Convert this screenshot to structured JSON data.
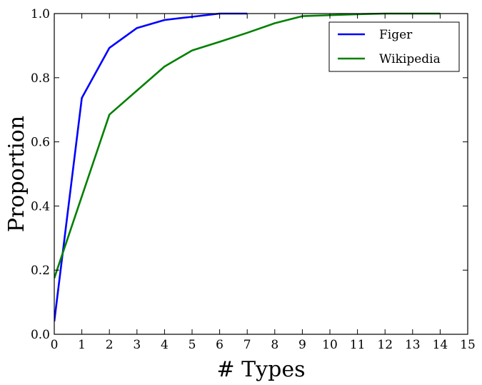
{
  "chart_data": {
    "type": "line",
    "xlabel": "# Types",
    "ylabel": "Proportion",
    "xlim": [
      0,
      15
    ],
    "ylim": [
      0.0,
      1.0
    ],
    "xticks": [
      "0",
      "1",
      "2",
      "3",
      "4",
      "5",
      "6",
      "7",
      "8",
      "9",
      "10",
      "11",
      "12",
      "13",
      "14",
      "15"
    ],
    "yticks": [
      "0.0",
      "0.2",
      "0.4",
      "0.6",
      "0.8",
      "1.0"
    ],
    "grid": false,
    "legend_position": "top-right",
    "series": [
      {
        "name": "Figer",
        "color": "#0000ff",
        "x": [
          0,
          1,
          2,
          3,
          4,
          5,
          6,
          7
        ],
        "values": [
          0.04,
          0.737,
          0.893,
          0.955,
          0.98,
          0.99,
          1.0,
          1.0
        ]
      },
      {
        "name": "Wikipedia",
        "color": "#008000",
        "x": [
          0,
          1,
          2,
          3,
          4,
          5,
          6,
          7,
          8,
          9,
          10,
          11,
          12,
          13,
          14
        ],
        "values": [
          0.175,
          0.43,
          0.685,
          0.76,
          0.835,
          0.885,
          0.912,
          0.94,
          0.97,
          0.992,
          0.995,
          0.998,
          1.0,
          1.0,
          1.0
        ]
      }
    ]
  }
}
